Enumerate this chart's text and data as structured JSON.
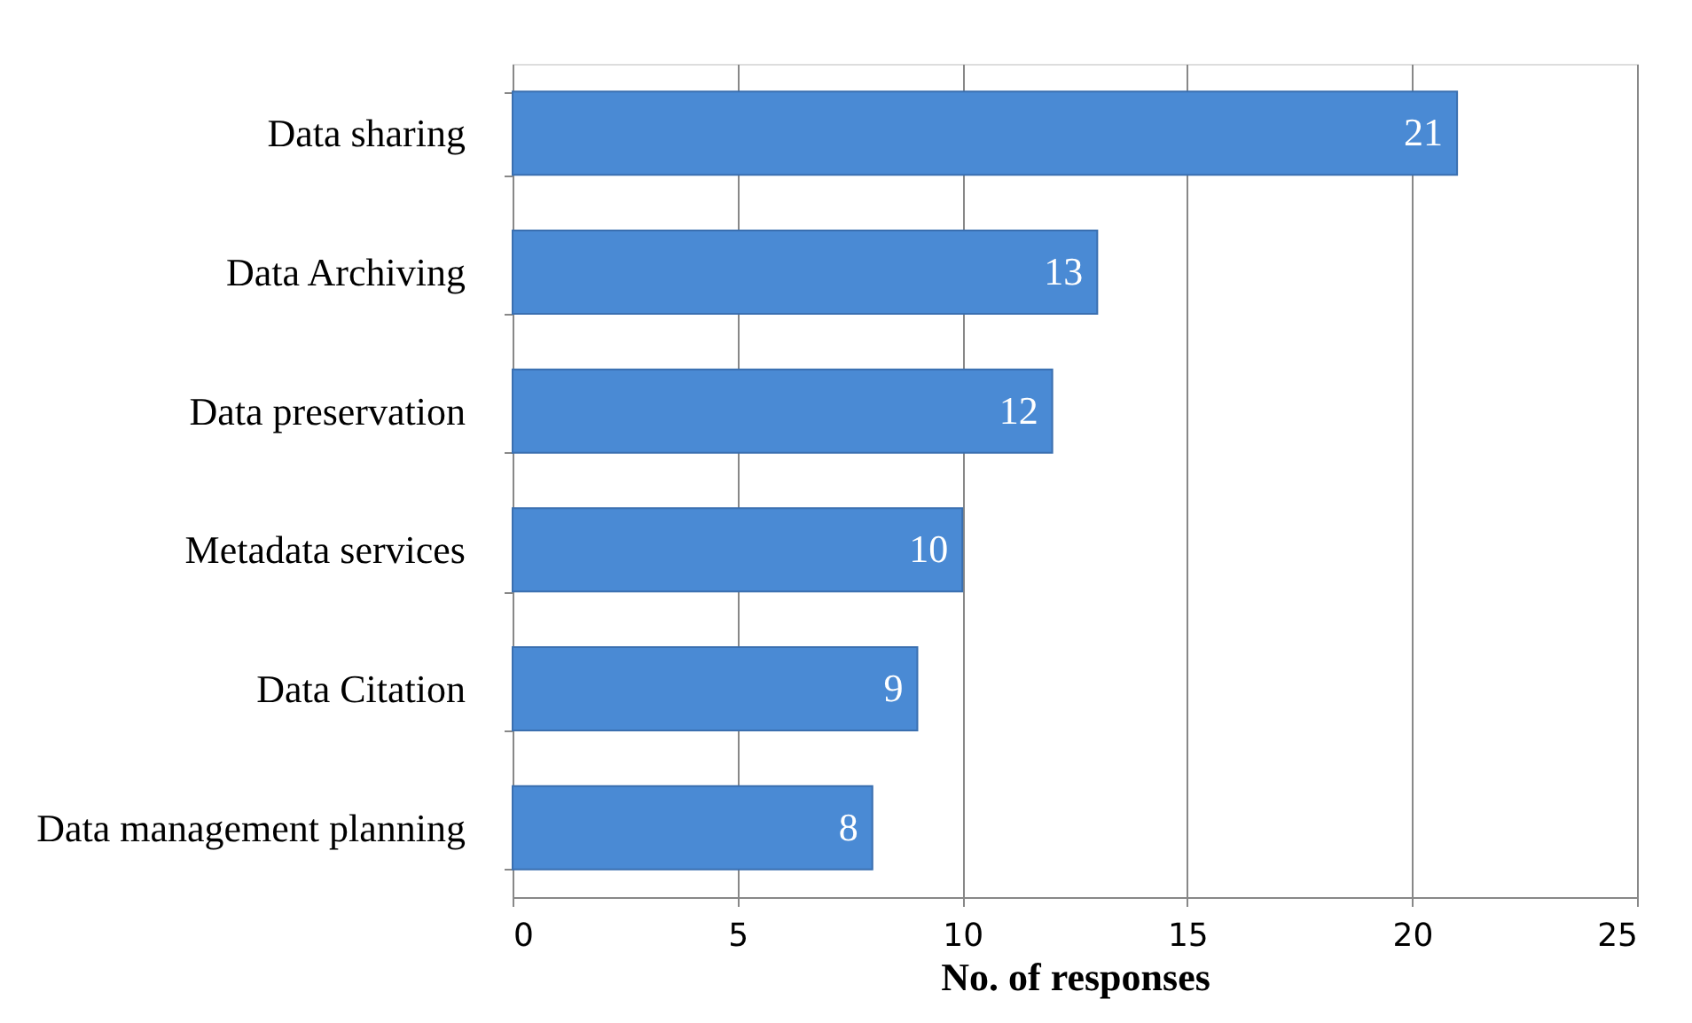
{
  "chart_data": {
    "type": "bar",
    "orientation": "horizontal",
    "categories": [
      "Data sharing",
      "Data Archiving",
      "Data preservation",
      "Metadata services",
      "Data Citation",
      "Data management planning"
    ],
    "values": [
      21,
      13,
      12,
      10,
      9,
      8
    ],
    "color": "#4a8ad4",
    "xlabel": "No. of responses",
    "xlim": [
      0,
      25
    ],
    "xticks": [
      0,
      5,
      10,
      15,
      20,
      25
    ],
    "grid": "x",
    "data_labels": true
  }
}
